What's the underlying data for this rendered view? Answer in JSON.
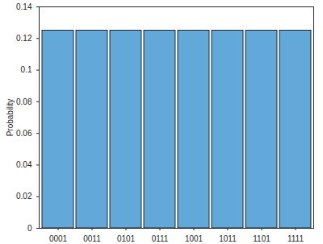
{
  "chart_data": {
    "type": "bar",
    "categories": [
      "0001",
      "0011",
      "0101",
      "0111",
      "1001",
      "1011",
      "1101",
      "1111"
    ],
    "values": [
      0.125,
      0.125,
      0.125,
      0.125,
      0.125,
      0.125,
      0.125,
      0.125
    ],
    "color": "#62a8d8",
    "y_label": "Probability",
    "ylim": [
      0,
      0.14
    ],
    "yticks": [
      0,
      0.02,
      0.04,
      0.06,
      0.08,
      0.1,
      0.12,
      0.14
    ],
    "grid": false
  }
}
